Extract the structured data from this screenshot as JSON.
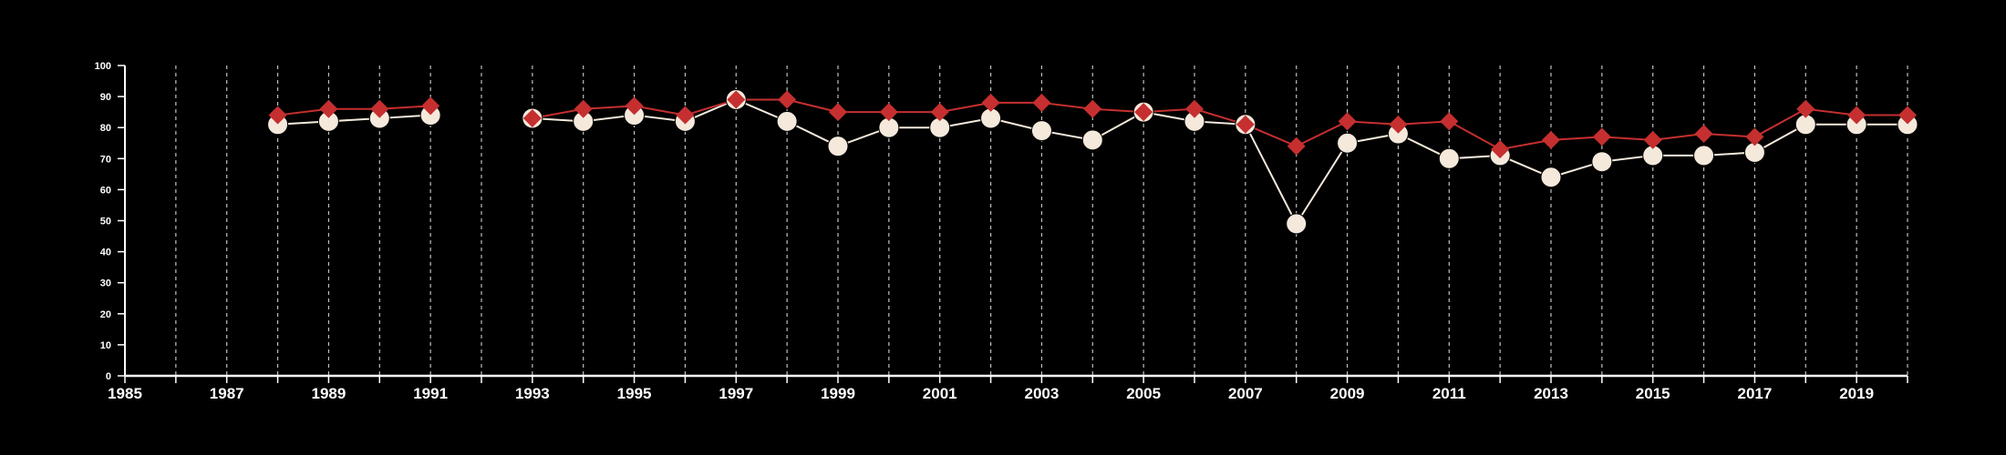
{
  "chart_data": {
    "type": "line",
    "x": [
      1988,
      1989,
      1990,
      1991,
      1992,
      1993,
      1994,
      1995,
      1996,
      1997,
      1998,
      1999,
      2000,
      2001,
      2002,
      2003,
      2004,
      2005,
      2006,
      2007,
      2008,
      2009,
      2010,
      2011,
      2012,
      2013,
      2014,
      2015,
      2016,
      2017,
      2018,
      2019,
      2020
    ],
    "series": [
      {
        "marker": "circle",
        "color": "#f5e9dc",
        "values": [
          81,
          82,
          83,
          84,
          null,
          83,
          82,
          84,
          82,
          89,
          82,
          74,
          80,
          80,
          83,
          79,
          76,
          85,
          82,
          81,
          49,
          75,
          78,
          70,
          71,
          64,
          69,
          71,
          71,
          72,
          81,
          81,
          81
        ]
      },
      {
        "marker": "diamond",
        "color": "#c62f2f",
        "values": [
          84,
          86,
          86,
          87,
          null,
          83,
          86,
          87,
          84,
          89,
          89,
          85,
          85,
          85,
          88,
          88,
          86,
          85,
          86,
          81,
          74,
          82,
          81,
          82,
          73,
          76,
          77,
          76,
          78,
          77,
          86,
          84,
          84
        ]
      }
    ],
    "xlim": [
      1985,
      2020
    ],
    "ylim": [
      0,
      100
    ],
    "y_ticks": [
      "0",
      "10",
      "20",
      "30",
      "40",
      "50",
      "60",
      "70",
      "80",
      "90",
      "100"
    ],
    "x_ticks": [
      "1985",
      "1987",
      "1989",
      "1991",
      "1993",
      "1995",
      "1997",
      "1999",
      "2001",
      "2003",
      "2005",
      "2007",
      "2009",
      "2011",
      "2013",
      "2015",
      "2017",
      "2019"
    ],
    "grid": "vertical dashed gridlines every year",
    "background": "#000000",
    "axis_color": "#ffffff"
  }
}
